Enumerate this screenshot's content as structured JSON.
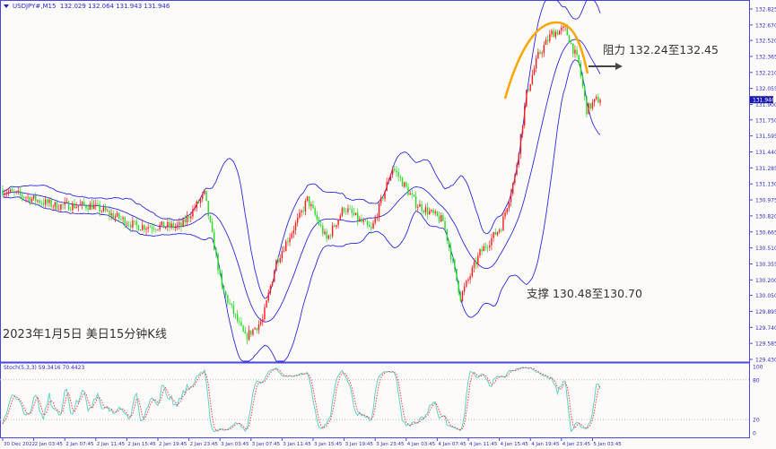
{
  "header": {
    "symbol": "USDJPY#,M15",
    "ohlc": "132.029 132.064 131.943 131.946"
  },
  "title": "2023年1月5日 美日15分钟K线",
  "annotations": {
    "resistance": "阻力 132.24至132.45",
    "support": "支撑 130.48至130.70"
  },
  "colors": {
    "up": "#ff1a1a",
    "down": "#22dd22",
    "bands": "#2a2adf",
    "axis": "#4848e0",
    "stoch_main": "#5fd3c6",
    "stoch_signal": "#ff4040",
    "arc": "#ffa500",
    "arrow": "#444444",
    "current_price_bg": "#1a1ab0"
  },
  "chart_data": {
    "type": "candlestick",
    "price_axis": {
      "ticks": [
        "132.825",
        "132.670",
        "132.520",
        "132.365",
        "132.210",
        "132.055",
        "131.900",
        "131.750",
        "131.595",
        "131.440",
        "131.285",
        "131.130",
        "130.975",
        "130.820",
        "130.665",
        "130.510",
        "130.355",
        "130.200",
        "130.050",
        "129.895",
        "129.740",
        "129.585",
        "129.430"
      ],
      "range": [
        129.43,
        132.825
      ]
    },
    "current_price": "131.946",
    "time_axis": {
      "ticks": [
        "30 Dec 2022",
        "2 Jan 03:45",
        "2 Jan 07:45",
        "2 Jan 11:45",
        "2 Jan 15:45",
        "2 Jan 19:45",
        "2 Jan 23:45",
        "3 Jan 03:45",
        "3 Jan 07:45",
        "3 Jan 11:45",
        "3 Jan 15:45",
        "3 Jan 19:45",
        "3 Jan 23:45",
        "4 Jan 03:45",
        "4 Jan 07:45",
        "4 Jan 11:45",
        "4 Jan 15:45",
        "4 Jan 19:45",
        "4 Jan 23:45",
        "5 Jan 03:45"
      ],
      "bars_per_tick": 16
    },
    "approx_close_path": [
      [
        0,
        131.07
      ],
      [
        27,
        130.92
      ],
      [
        46,
        130.92
      ],
      [
        69,
        130.72
      ],
      [
        92,
        130.72
      ],
      [
        104,
        131.03
      ],
      [
        113,
        130.12
      ],
      [
        125,
        129.64
      ],
      [
        134,
        129.81
      ],
      [
        141,
        130.38
      ],
      [
        153,
        130.81
      ],
      [
        157,
        130.98
      ],
      [
        167,
        130.59
      ],
      [
        176,
        130.9
      ],
      [
        190,
        130.68
      ],
      [
        201,
        131.29
      ],
      [
        213,
        130.94
      ],
      [
        227,
        130.77
      ],
      [
        236,
        130.03
      ],
      [
        246,
        130.46
      ],
      [
        257,
        130.72
      ],
      [
        264,
        131.2
      ],
      [
        270,
        132.0
      ],
      [
        276,
        132.37
      ],
      [
        283,
        132.59
      ],
      [
        290,
        132.63
      ],
      [
        297,
        132.29
      ],
      [
        301,
        131.85
      ],
      [
        306,
        131.94
      ],
      [
        308,
        131.946
      ]
    ],
    "indicators": {
      "bollinger": "20,2",
      "stochastic": {
        "label": "Stoch(5,3,3) 59.3416 70.4423",
        "levels": [
          "100",
          "80",
          "20",
          "0"
        ]
      }
    }
  }
}
